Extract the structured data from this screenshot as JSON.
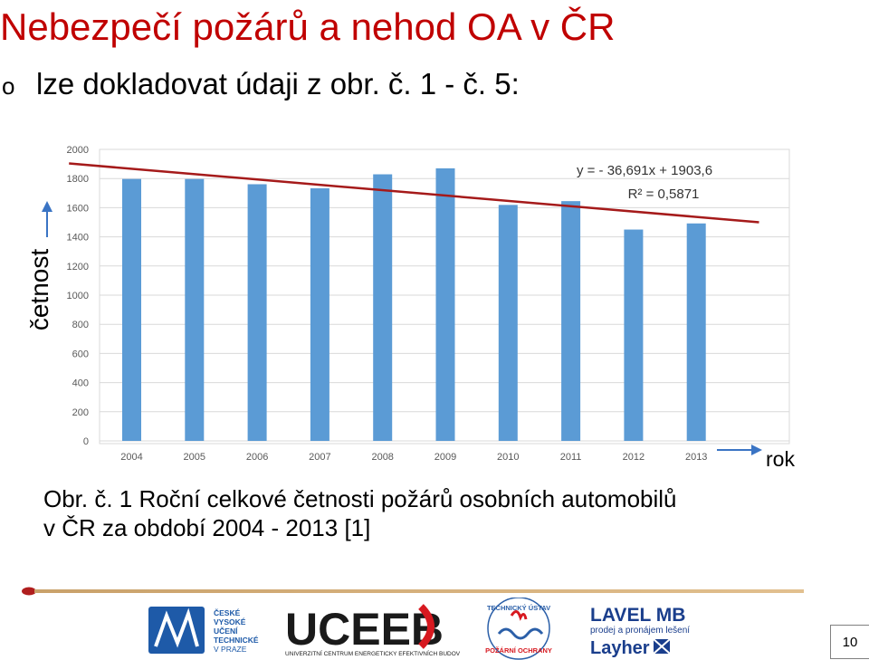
{
  "slide": {
    "title": "Nebezpečí požárů a nehod OA v ČR",
    "bullet_marker": "o",
    "bullet_text": "lze dokladovat údaji z obr. č. 1 - č. 5:",
    "caption_line1": "Obr. č. 1 Roční celkové četnosti požárů osobních automobilů",
    "caption_line2": "v ČR za období 2004 - 2013 [1]",
    "page_number": "10"
  },
  "logos": {
    "cvut_line1": "ČESKÉ",
    "cvut_line2": "VYSOKÉ",
    "cvut_line3": "UČENÍ",
    "cvut_line4": "TECHNICKÉ",
    "cvut_line5": "V PRAZE",
    "uceeb_name": "UCEEB",
    "uceeb_sub": "UNIVERZITNÍ CENTRUM ENERGETICKY EFEKTIVNÍCH BUDOV",
    "tu_top": "TECHNICKÝ ÚSTAV",
    "tu_bottom": "POŽÁRNÍ OCHRANY",
    "lavel_name": "LAVEL MB",
    "lavel_sub1": "prodej a pronájem lešení",
    "lavel_sub2": "Layher"
  },
  "chart_data": {
    "type": "bar",
    "categories": [
      "2004",
      "2005",
      "2006",
      "2007",
      "2008",
      "2009",
      "2010",
      "2011",
      "2012",
      "2013"
    ],
    "values": [
      1797,
      1797,
      1761,
      1733,
      1829,
      1870,
      1619,
      1645,
      1450,
      1492
    ],
    "ylim": [
      0,
      2000
    ],
    "yticks": [
      0,
      200,
      400,
      600,
      800,
      1000,
      1200,
      1400,
      1600,
      1800,
      2000
    ],
    "ylabel": "četnost",
    "xlabel": "rok",
    "trendline": {
      "slope": -36.691,
      "intercept": 1903.6,
      "equation": "y = - 36,691x + 1903,6",
      "r2": "R² = 0,5871"
    },
    "bar_color": "#5b9bd5",
    "trend_color": "#a51a1a",
    "grid": true
  }
}
